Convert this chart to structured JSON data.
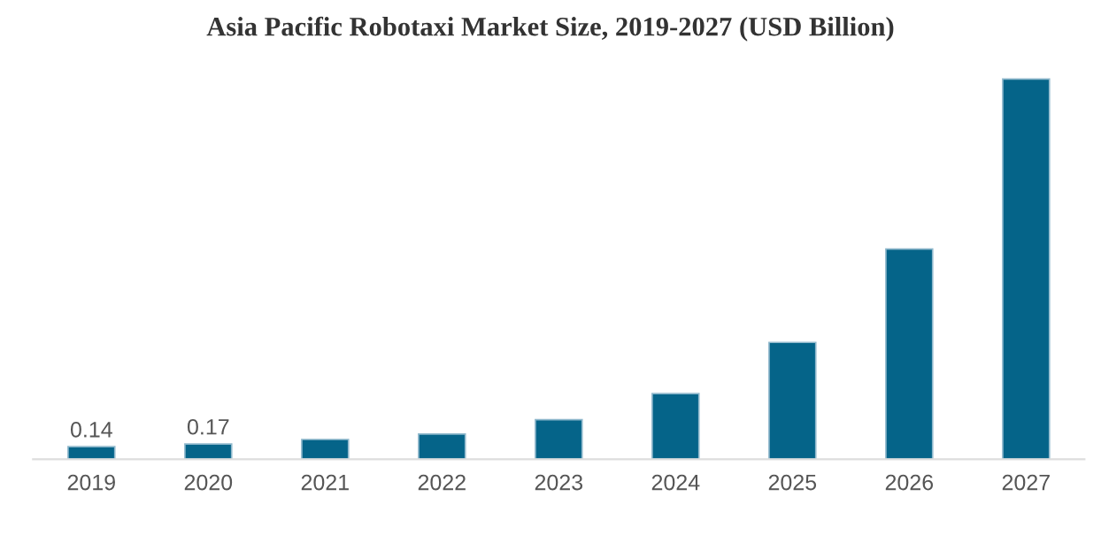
{
  "chart_data": {
    "type": "bar",
    "title": "Asia Pacific Robotaxi Market Size, 2019-2027 (USD Billion)",
    "categories": [
      "2019",
      "2020",
      "2021",
      "2022",
      "2023",
      "2024",
      "2025",
      "2026",
      "2027"
    ],
    "values": [
      0.14,
      0.17,
      0.22,
      0.28,
      0.44,
      0.73,
      1.3,
      2.34,
      4.23
    ],
    "value_labels": [
      "0.14",
      "0.17",
      null,
      null,
      null,
      null,
      null,
      null,
      null
    ],
    "color": "#056489",
    "grid": false,
    "legend": false
  }
}
